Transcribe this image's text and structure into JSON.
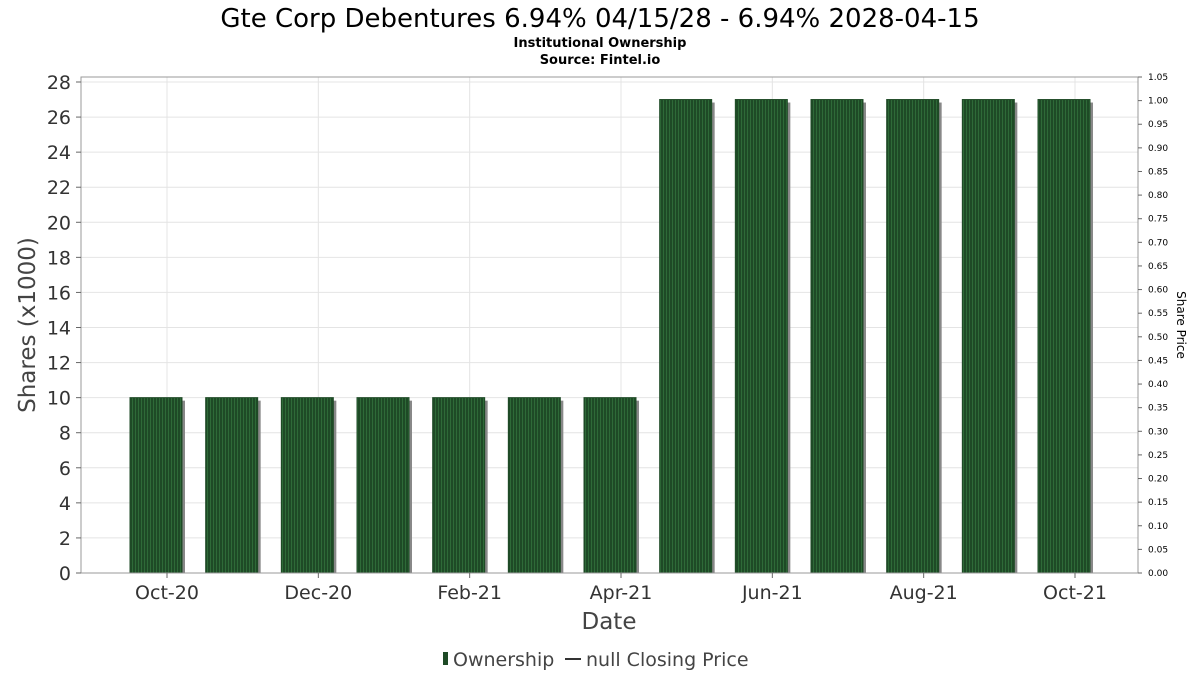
{
  "chart_data": {
    "type": "bar",
    "title": "Gte Corp Debentures 6.94% 04/15/28 - 6.94% 2028-04-15",
    "subtitle_lines": [
      "Institutional Ownership",
      "Source: Fintel.io"
    ],
    "xlabel": "Date",
    "ylabel": "Shares (x1000)",
    "y2label": "Share Price",
    "categories": [
      "2020-10",
      "2020-11",
      "2020-12",
      "2021-01",
      "2021-02",
      "2021-03",
      "2021-04",
      "2021-05",
      "2021-06",
      "2021-07",
      "2021-08",
      "2021-09",
      "2021-10"
    ],
    "x_tick_labels": [
      "Oct-20",
      "Dec-20",
      "Feb-21",
      "Apr-21",
      "Jun-21",
      "Aug-21",
      "Oct-21"
    ],
    "series": [
      {
        "name": "Ownership",
        "values": [
          10,
          10,
          10,
          10,
          10,
          10,
          10,
          27,
          27,
          27,
          27,
          27,
          27
        ]
      }
    ],
    "ylim": [
      0,
      28
    ],
    "y_ticks": [
      0,
      2,
      4,
      6,
      8,
      10,
      12,
      14,
      16,
      18,
      20,
      22,
      24,
      26,
      28
    ],
    "y2lim": [
      0,
      1.05
    ],
    "y2_ticks": [
      "0.00",
      "0.05",
      "0.10",
      "0.15",
      "0.20",
      "0.25",
      "0.30",
      "0.35",
      "0.40",
      "0.45",
      "0.50",
      "0.55",
      "0.60",
      "0.65",
      "0.70",
      "0.75",
      "0.80",
      "0.85",
      "0.90",
      "0.95",
      "1.00",
      "1.05"
    ],
    "grid": true,
    "legend": {
      "position": "bottom",
      "items": [
        {
          "label": "Ownership",
          "symbol": "bar"
        },
        {
          "label": "null Closing Price",
          "symbol": "line"
        }
      ]
    },
    "colors": {
      "bar": "#1e4a26",
      "bar_stripe": "#2e6a38",
      "bar_shadow": "#888888",
      "grid": "#e4e4e4",
      "frame": "#999999"
    }
  }
}
